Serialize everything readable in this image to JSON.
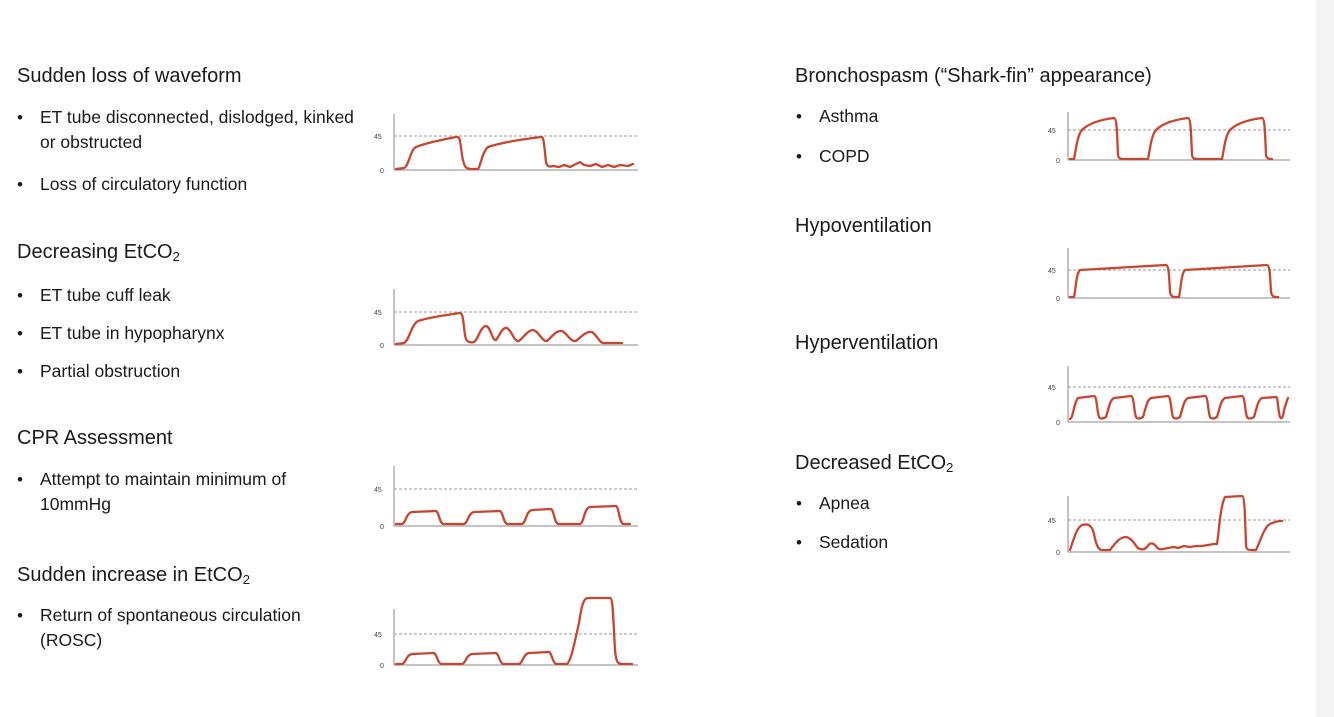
{
  "axis_labels": {
    "high": "45",
    "low": "0"
  },
  "trace_color": "#c8452f",
  "sections": [
    {
      "title": "Sudden loss of waveform",
      "bullets": [
        "ET tube disconnected, dislodged, kinked or obstructed",
        "Loss of circulatory function"
      ],
      "waveform": "loss-of-waveform"
    },
    {
      "title": "Decreasing EtCO",
      "title_sub": "2",
      "bullets": [
        "ET tube cuff leak",
        "ET tube in hypopharynx",
        "Partial obstruction"
      ],
      "waveform": "decreasing-etco2"
    },
    {
      "title": "CPR Assessment",
      "bullets": [
        "Attempt to maintain minimum of 10mmHg"
      ],
      "waveform": "cpr-assessment"
    },
    {
      "title": "Sudden increase in EtCO",
      "title_sub": "2",
      "bullets": [
        "Return of spontaneous circulation (ROSC)"
      ],
      "waveform": "rosc"
    },
    {
      "title": "Bronchospasm (“Shark-fin” appearance)",
      "bullets": [
        "Asthma",
        "COPD"
      ],
      "waveform": "shark-fin"
    },
    {
      "title": "Hypoventilation",
      "bullets": [],
      "waveform": "hypoventilation"
    },
    {
      "title": "Hyperventilation",
      "bullets": [],
      "waveform": "hyperventilation"
    },
    {
      "title": "Decreased EtCO",
      "title_sub": "2",
      "bullets": [
        "Apnea",
        "Sedation"
      ],
      "waveform": "decreased-etco2"
    }
  ]
}
